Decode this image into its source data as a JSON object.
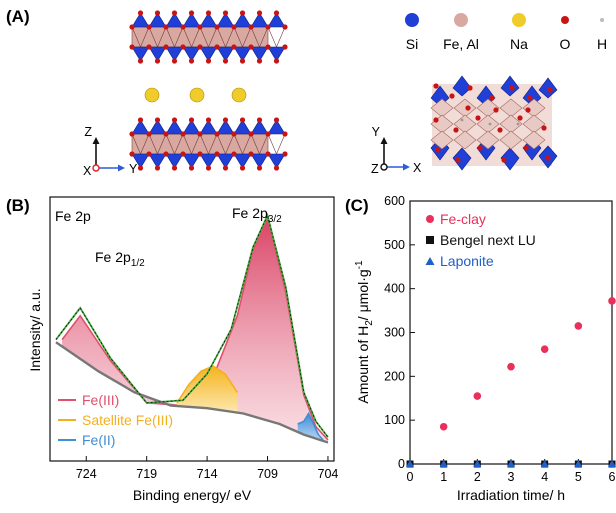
{
  "panel_a": {
    "label": "(A)",
    "legend": [
      {
        "symbol": "Si",
        "color": "#1f3fd6"
      },
      {
        "symbol": "Fe, Al",
        "color": "#d9a9a1"
      },
      {
        "symbol": "Na",
        "color": "#f0cc2a"
      },
      {
        "symbol": "O",
        "color": "#c81414"
      },
      {
        "symbol": "H",
        "color": "#cccccc"
      }
    ],
    "left_axes": {
      "vertical": "Z",
      "horizontal": "Y",
      "depth": "X"
    },
    "right_axes": {
      "vertical": "Y",
      "horizontal": "X",
      "depth": "Z"
    }
  },
  "panel_b": {
    "label": "(B)",
    "corner_label": "Fe 2p",
    "peak_32_main": "Fe 2p",
    "peak_32_sub": "3/2",
    "peak_12_main": "Fe 2p",
    "peak_12_sub": "1/2",
    "ylabel": "Intensity/ a.u.",
    "xlabel": "Binding energy/ eV",
    "x_ticks": [
      "724",
      "719",
      "714",
      "709",
      "704"
    ],
    "legend": [
      {
        "name": "Fe(III)",
        "color": "#e0506e"
      },
      {
        "name": "Satellite Fe(III)",
        "color": "#f2b021"
      },
      {
        "name": "Fe(II)",
        "color": "#3f8fd8"
      }
    ],
    "envelope_color": "#3fae3a"
  },
  "panel_c": {
    "label": "(C)",
    "ylabel_main": "Amount of H",
    "ylabel_sub": "2",
    "ylabel_tail": "/ μmol·g",
    "ylabel_sup": "-1",
    "xlabel": "Irradiation time/ h",
    "legend": [
      {
        "name": "Fe-clay",
        "color": "#e8305a",
        "marker": "circle"
      },
      {
        "name": "Bengel next LU",
        "color": "#111111",
        "marker": "square"
      },
      {
        "name": "Laponite",
        "color": "#1f5fc8",
        "marker": "triangle"
      }
    ]
  },
  "chart_data": [
    {
      "type": "line",
      "title": "",
      "xlabel": "Binding energy/ eV",
      "ylabel": "Intensity/ a.u.",
      "xlim": [
        727,
        703.5
      ],
      "x_reversed": true,
      "x_ticks": [
        724,
        719,
        714,
        709,
        704
      ],
      "ylim": [
        0,
        1
      ],
      "series": [
        {
          "name": "Fe(III)",
          "x": [
            726,
            724.5,
            722,
            719,
            716,
            714,
            711.5,
            710.2,
            709,
            707.5,
            706,
            705,
            704
          ],
          "y": [
            0.46,
            0.55,
            0.38,
            0.22,
            0.21,
            0.26,
            0.55,
            0.8,
            0.92,
            0.64,
            0.25,
            0.13,
            0.08
          ]
        },
        {
          "name": "Satellite Fe(III)",
          "x": [
            716.5,
            715.5,
            714.5,
            713.5,
            712.5,
            711.5
          ],
          "y": [
            0.22,
            0.29,
            0.34,
            0.36,
            0.33,
            0.26
          ]
        },
        {
          "name": "Fe(II)",
          "x": [
            706.5,
            706,
            705.6,
            705.2,
            704.8,
            704.4
          ],
          "y": [
            0.14,
            0.15,
            0.18,
            0.14,
            0.1,
            0.08
          ]
        },
        {
          "name": "",
          "x": [
            726.5,
            724.5,
            722,
            719,
            716,
            714,
            712,
            710.2,
            709,
            707.5,
            706,
            705,
            704
          ],
          "y": [
            0.46,
            0.58,
            0.39,
            0.22,
            0.23,
            0.33,
            0.5,
            0.81,
            0.93,
            0.66,
            0.26,
            0.15,
            0.09
          ]
        },
        {
          "name": "",
          "x": [
            726.5,
            723,
            720,
            717,
            714,
            711,
            708,
            706,
            704
          ],
          "y": [
            0.45,
            0.34,
            0.26,
            0.21,
            0.2,
            0.18,
            0.14,
            0.1,
            0.07
          ]
        }
      ]
    },
    {
      "type": "scatter",
      "title": "",
      "xlabel": "Irradiation time/ h",
      "ylabel": "Amount of H2/ μmol·g-1",
      "xlim": [
        0,
        6
      ],
      "ylim": [
        0,
        600
      ],
      "x_ticks": [
        0,
        1,
        2,
        3,
        4,
        5,
        6
      ],
      "y_ticks": [
        0,
        100,
        200,
        300,
        400,
        500,
        600
      ],
      "legend_position": "top-left",
      "series": [
        {
          "name": "Fe-clay",
          "x": [
            1,
            2,
            3,
            4,
            5,
            6
          ],
          "y": [
            85,
            155,
            222,
            262,
            315,
            372
          ]
        },
        {
          "name": "Bengel next LU",
          "x": [
            0,
            1,
            2,
            3,
            4,
            5,
            6
          ],
          "y": [
            0,
            0,
            0,
            0,
            0,
            0,
            0
          ]
        },
        {
          "name": "Laponite",
          "x": [
            0,
            1,
            2,
            3,
            4,
            5,
            6
          ],
          "y": [
            0,
            0,
            0,
            0,
            0,
            0,
            0
          ]
        }
      ]
    }
  ]
}
